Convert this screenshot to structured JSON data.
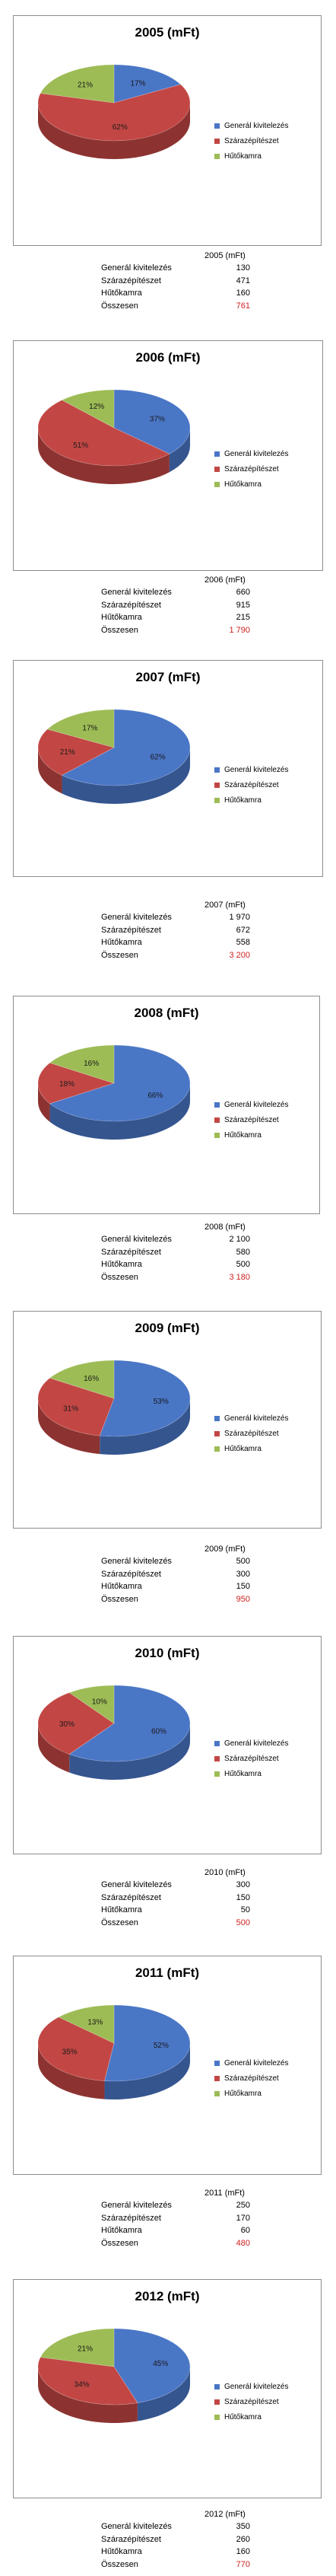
{
  "colors": {
    "generalkivitelezes": "#4a76c6",
    "szarazepiteszet": "#c24744",
    "hutokamra": "#9dbc55",
    "total": "#d11f1f"
  },
  "legend": [
    "Generál kivitelezés",
    "Szárazépítészet",
    "Hűtőkamra"
  ],
  "chart_data": [
    {
      "type": "pie",
      "title": "2005 (mFt)",
      "categories": [
        "Generál kivitelezés",
        "Szárazépítészet",
        "Hűtőkamra"
      ],
      "values": [
        17,
        62,
        21
      ],
      "value_labels": [
        "17%",
        "62%",
        "21%"
      ]
    },
    {
      "type": "pie",
      "title": "2006 (mFt)",
      "categories": [
        "Generál kivitelezés",
        "Szárazépítészet",
        "Hűtőkamra"
      ],
      "values": [
        37,
        51,
        12
      ],
      "value_labels": [
        "37%",
        "51%",
        "12%"
      ]
    },
    {
      "type": "pie",
      "title": "2007 (mFt)",
      "categories": [
        "Generál kivitelezés",
        "Szárazépítészet",
        "Hűtőkamra"
      ],
      "values": [
        62,
        21,
        17
      ],
      "value_labels": [
        "62%",
        "21%",
        "17%"
      ]
    },
    {
      "type": "pie",
      "title": "2008 (mFt)",
      "categories": [
        "Generál kivitelezés",
        "Szárazépítészet",
        "Hűtőkamra"
      ],
      "values": [
        66,
        18,
        16
      ],
      "value_labels": [
        "66%",
        "18%",
        "16%"
      ]
    },
    {
      "type": "pie",
      "title": "2009 (mFt)",
      "categories": [
        "Generál kivitelezés",
        "Szárazépítészet",
        "Hűtőkamra"
      ],
      "values": [
        53,
        31,
        16
      ],
      "value_labels": [
        "53%",
        "31%",
        "16%"
      ]
    },
    {
      "type": "pie",
      "title": "2010 (mFt)",
      "categories": [
        "Generál kivitelezés",
        "Szárazépítészet",
        "Hűtőkamra"
      ],
      "values": [
        60,
        30,
        10
      ],
      "value_labels": [
        "60%",
        "30%",
        "10%"
      ]
    },
    {
      "type": "pie",
      "title": "2011 (mFt)",
      "categories": [
        "Generál kivitelezés",
        "Szárazépítészet",
        "Hűtőkamra"
      ],
      "values": [
        52,
        35,
        13
      ],
      "value_labels": [
        "52%",
        "35%",
        "13%"
      ]
    },
    {
      "type": "pie",
      "title": "2012 (mFt)",
      "categories": [
        "Generál kivitelezés",
        "Szárazépítészet",
        "Hűtőkamra"
      ],
      "values": [
        45,
        34,
        21
      ],
      "value_labels": [
        "45%",
        "34%",
        "21%"
      ]
    }
  ],
  "tables": [
    {
      "header": "2005 (mFt)",
      "rows": [
        {
          "label": "Generál kivitelezés",
          "value": "130"
        },
        {
          "label": "Szárazépítészet",
          "value": "471"
        },
        {
          "label": "Hűtőkamra",
          "value": "160"
        }
      ],
      "total_label": "Összesen",
      "total_value": "761"
    },
    {
      "header": "2006 (mFt)",
      "rows": [
        {
          "label": "Generál kivitelezés",
          "value": "660"
        },
        {
          "label": "Szárazépítészet",
          "value": "915"
        },
        {
          "label": "Hűtőkamra",
          "value": "215"
        }
      ],
      "total_label": "Összesen",
      "total_value": "1 790"
    },
    {
      "header": "2007 (mFt)",
      "rows": [
        {
          "label": "Generál kivitelezés",
          "value": "1 970"
        },
        {
          "label": "Szárazépítészet",
          "value": "672"
        },
        {
          "label": "Hűtőkamra",
          "value": "558"
        }
      ],
      "total_label": "Összesen",
      "total_value": "3 200"
    },
    {
      "header": "2008 (mFt)",
      "rows": [
        {
          "label": "Generál kivitelezés",
          "value": "2 100"
        },
        {
          "label": "Szárazépítészet",
          "value": "580"
        },
        {
          "label": "Hűtőkamra",
          "value": "500"
        }
      ],
      "total_label": "Összesen",
      "total_value": "3 180"
    },
    {
      "header": "2009 (mFt)",
      "rows": [
        {
          "label": "Generál kivitelezés",
          "value": "500"
        },
        {
          "label": "Szárazépítészet",
          "value": "300"
        },
        {
          "label": "Hűtőkamra",
          "value": "150"
        }
      ],
      "total_label": "Összesen",
      "total_value": "950"
    },
    {
      "header": "2010 (mFt)",
      "rows": [
        {
          "label": "Generál kivitelezés",
          "value": "300"
        },
        {
          "label": "Szárazépítészet",
          "value": "150"
        },
        {
          "label": "Hűtőkamra",
          "value": "50"
        }
      ],
      "total_label": "Összesen",
      "total_value": "500"
    },
    {
      "header": "2011 (mFt)",
      "rows": [
        {
          "label": "Generál kivitelezés",
          "value": "250"
        },
        {
          "label": "Szárazépítészet",
          "value": "170"
        },
        {
          "label": "Hűtőkamra",
          "value": "60"
        }
      ],
      "total_label": "Összesen",
      "total_value": "480"
    },
    {
      "header": "2012 (mFt)",
      "rows": [
        {
          "label": "Generál kivitelezés",
          "value": "350"
        },
        {
          "label": "Szárazépítészet",
          "value": "260"
        },
        {
          "label": "Hűtőkamra",
          "value": "160"
        }
      ],
      "total_label": "Összesen",
      "total_value": "770"
    }
  ]
}
